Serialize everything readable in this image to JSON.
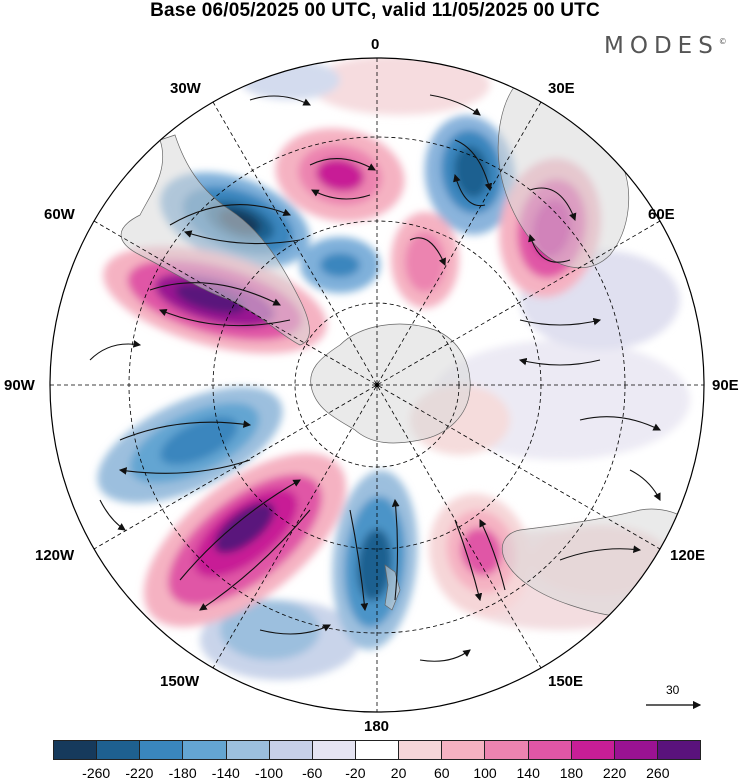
{
  "title": "Base 06/05/2025 00 UTC, valid 11/05/2025 00 UTC",
  "brand": {
    "name": "MODES",
    "mark": "©"
  },
  "longitude_labels": {
    "lon_0": "0",
    "lon_30e": "30E",
    "lon_60e": "60E",
    "lon_90e": "90E",
    "lon_120e": "120E",
    "lon_150e": "150E",
    "lon_180": "180",
    "lon_150w": "150W",
    "lon_120w": "120W",
    "lon_90w": "90W",
    "lon_60w": "60W",
    "lon_30w": "30W"
  },
  "reference_vector": {
    "value": "30"
  },
  "colorbar": {
    "colors": [
      "#163a5c",
      "#1e6090",
      "#3a86be",
      "#64a5d2",
      "#9cbfde",
      "#c7d0e8",
      "#e5e4f2",
      "#ffffff",
      "#f6d6d8",
      "#f5b2c2",
      "#ec84b0",
      "#e056a6",
      "#c81e96",
      "#9a1292",
      "#5a127c"
    ],
    "tick_labels": [
      "-260",
      "-220",
      "-180",
      "-140",
      "-100",
      "-60",
      "-20",
      "20",
      "60",
      "100",
      "140",
      "180",
      "220",
      "260"
    ]
  }
}
